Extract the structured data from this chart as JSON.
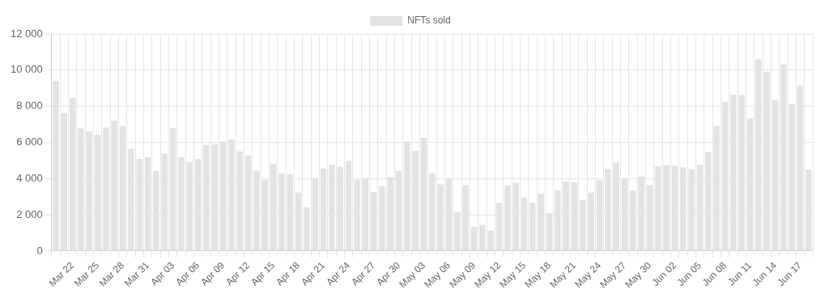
{
  "chart_data": {
    "type": "bar",
    "categories": [
      null,
      null,
      "Mar 22",
      null,
      null,
      "Mar 25",
      null,
      null,
      "Mar 28",
      null,
      null,
      "Mar 31",
      null,
      null,
      "Apr 03",
      null,
      null,
      "Apr 06",
      null,
      null,
      "Apr 09",
      null,
      null,
      "Apr 12",
      null,
      null,
      "Apr 15",
      null,
      null,
      "Apr 18",
      null,
      null,
      "Apr 21",
      null,
      null,
      "Apr 24",
      null,
      null,
      "Apr 27",
      null,
      null,
      "Apr 30",
      null,
      null,
      "May 03",
      null,
      null,
      "May 06",
      null,
      null,
      "May 09",
      null,
      null,
      "May 12",
      null,
      null,
      "May 15",
      null,
      null,
      "May 18",
      null,
      null,
      "May 21",
      null,
      null,
      "May 24",
      null,
      null,
      "May 27",
      null,
      null,
      "May 30",
      null,
      null,
      "Jun 02",
      null,
      null,
      "Jun 05",
      null,
      null,
      "Jun 08",
      null,
      null,
      "Jun 11",
      null,
      null,
      "Jun 14",
      null,
      null,
      "Jun 17",
      null
    ],
    "series": [
      {
        "name": "NFTs sold",
        "color": "#e3e3e3",
        "values": [
          9400,
          7640,
          8470,
          6780,
          6610,
          6420,
          6830,
          7200,
          6900,
          5640,
          5090,
          5190,
          4430,
          5390,
          6790,
          5190,
          4930,
          5090,
          5860,
          5900,
          6050,
          6170,
          5510,
          5290,
          4430,
          3920,
          4820,
          4310,
          4240,
          3230,
          2420,
          4040,
          4550,
          4780,
          4650,
          4990,
          3940,
          4010,
          3260,
          3580,
          4090,
          4430,
          6050,
          5530,
          6270,
          4310,
          3680,
          4010,
          2150,
          3630,
          1340,
          1450,
          1130,
          2670,
          3630,
          3770,
          2960,
          2670,
          3180,
          2100,
          3360,
          3840,
          3800,
          2810,
          3230,
          3900,
          4530,
          4900,
          4020,
          3350,
          4120,
          3650,
          4680,
          4750,
          4720,
          4630,
          4530,
          4780,
          5490,
          6930,
          8250,
          8640,
          8620,
          7330,
          10600,
          9920,
          8330,
          10330,
          8130,
          9130,
          4500
        ]
      }
    ],
    "ylim": [
      0,
      12000
    ],
    "yticks": [
      0,
      {
        "value": 2000,
        "label": "2 000"
      },
      {
        "value": 4000,
        "label": "4 000"
      },
      {
        "value": 6000,
        "label": "6 000"
      },
      {
        "value": 8000,
        "label": "8 000"
      },
      {
        "value": 10000,
        "label": "10 000"
      },
      {
        "value": 12000,
        "label": "12 000"
      }
    ],
    "grid": true,
    "legend": "top"
  }
}
